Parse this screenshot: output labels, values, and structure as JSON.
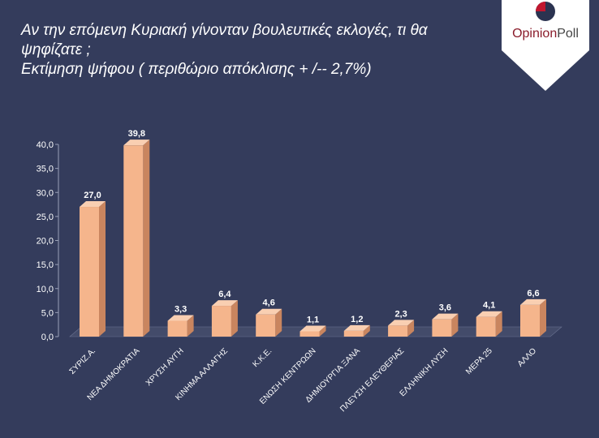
{
  "header": {
    "title_line1": "Αν την επόμενη Κυριακή γίνονταν βουλευτικές εκλογές, τι θα",
    "title_line2": "ψηφίζατε ;",
    "subtitle": "Εκτίμηση ψήφου ( περιθώριο απόκλισης + /-- 2,7%)"
  },
  "logo": {
    "text_opinion": "Opinion",
    "text_poll": "Poll",
    "icon": "pie-circle-icon",
    "colors": {
      "badge": "#ffffff",
      "accent": "#c0172f",
      "dark": "#2b3350"
    }
  },
  "colors": {
    "background": "#343c5c",
    "bar_front": "#f5b58c",
    "bar_top": "#f9cfb2",
    "bar_side": "#c9855f",
    "text": "#ffffff"
  },
  "chart_data": {
    "type": "bar",
    "categories": [
      "ΣΥΡΙΖ.Α.",
      "ΝΕΑ ΔΗΜΟΚΡΑΤΙΑ",
      "ΧΡΥΣΗ ΑΥΓΗ",
      "ΚΙΝΗΜΑ ΑΛΛΑΓΗΣ",
      "Κ.Κ.Ε.",
      "ΕΝΩΣΗ ΚΕΝΤΡΩΩΝ",
      "ΔΗΜΙΟΥΡΓΙΑ ΞΑΝΑ",
      "ΠΛΕΥΣΗ ΕΛΕΥΘΕΡΙΑΣ",
      "ΕΛΛΗΝΙΚΗ ΛΥΣΗ",
      "ΜΕΡΑ 25",
      "ΑΛΛΟ"
    ],
    "values": [
      27.0,
      39.8,
      3.3,
      6.4,
      4.6,
      1.1,
      1.2,
      2.3,
      3.6,
      4.1,
      6.6
    ],
    "value_labels": [
      "27,0",
      "39,8",
      "3,3",
      "6,4",
      "4,6",
      "1,1",
      "1,2",
      "2,3",
      "3,6",
      "4,1",
      "6,6"
    ],
    "y_ticks": [
      "0,0",
      "5,0",
      "10,0",
      "15,0",
      "20,0",
      "25,0",
      "30,0",
      "35,0",
      "40,0"
    ],
    "ylim": [
      0,
      40
    ],
    "grid": false,
    "legend": "none"
  }
}
